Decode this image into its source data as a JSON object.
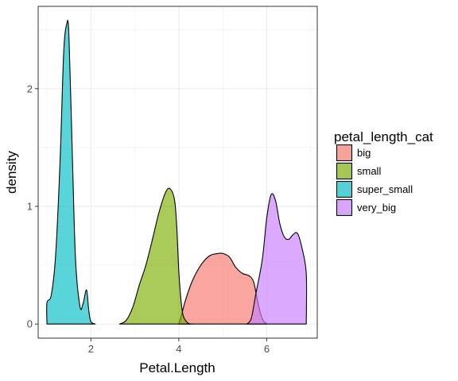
{
  "chart_data": {
    "type": "area",
    "xlabel": "Petal.Length",
    "ylabel": "density",
    "xlim": [
      0.8,
      7.15
    ],
    "ylim": [
      -0.12,
      2.7
    ],
    "x_ticks": [
      2,
      4,
      6
    ],
    "x_tick_labels": [
      "2",
      "4",
      "6"
    ],
    "y_ticks": [
      0,
      1,
      2
    ],
    "y_tick_labels": [
      "0",
      "1",
      "2"
    ],
    "grid": true,
    "legend": {
      "title": "petal_length_cat",
      "placement": "right"
    },
    "series": [
      {
        "name": "big",
        "color": "#F8766D",
        "points": [
          [
            4.0,
            0.0
          ],
          [
            4.05,
            0.06
          ],
          [
            4.15,
            0.2
          ],
          [
            4.3,
            0.36
          ],
          [
            4.5,
            0.5
          ],
          [
            4.7,
            0.58
          ],
          [
            4.9,
            0.6
          ],
          [
            5.0,
            0.6
          ],
          [
            5.15,
            0.57
          ],
          [
            5.3,
            0.48
          ],
          [
            5.45,
            0.43
          ],
          [
            5.6,
            0.41
          ],
          [
            5.7,
            0.36
          ],
          [
            5.78,
            0.22
          ],
          [
            5.85,
            0.1
          ],
          [
            5.92,
            0.03
          ],
          [
            6.0,
            0.0
          ]
        ]
      },
      {
        "name": "small",
        "color": "#7CAE00",
        "points": [
          [
            2.65,
            0.0
          ],
          [
            2.8,
            0.03
          ],
          [
            2.95,
            0.14
          ],
          [
            3.1,
            0.33
          ],
          [
            3.25,
            0.5
          ],
          [
            3.4,
            0.72
          ],
          [
            3.55,
            0.95
          ],
          [
            3.7,
            1.12
          ],
          [
            3.8,
            1.15
          ],
          [
            3.9,
            1.06
          ],
          [
            3.95,
            0.85
          ],
          [
            4.0,
            0.45
          ],
          [
            4.05,
            0.2
          ],
          [
            4.1,
            0.07
          ],
          [
            4.2,
            0.01
          ],
          [
            4.3,
            0.0
          ]
        ]
      },
      {
        "name": "super_small",
        "color": "#00BFC4",
        "points": [
          [
            1.0,
            0.0
          ],
          [
            1.0,
            0.18
          ],
          [
            1.1,
            0.25
          ],
          [
            1.2,
            0.6
          ],
          [
            1.3,
            1.4
          ],
          [
            1.38,
            2.3
          ],
          [
            1.45,
            2.55
          ],
          [
            1.5,
            2.45
          ],
          [
            1.58,
            1.4
          ],
          [
            1.65,
            0.55
          ],
          [
            1.75,
            0.15
          ],
          [
            1.82,
            0.17
          ],
          [
            1.9,
            0.29
          ],
          [
            1.95,
            0.12
          ],
          [
            2.0,
            0.02
          ],
          [
            2.1,
            0.0
          ]
        ]
      },
      {
        "name": "very_big",
        "color": "#C77CFF",
        "points": [
          [
            5.55,
            0.0
          ],
          [
            5.65,
            0.05
          ],
          [
            5.75,
            0.25
          ],
          [
            5.9,
            0.55
          ],
          [
            6.0,
            0.9
          ],
          [
            6.1,
            1.1
          ],
          [
            6.2,
            1.05
          ],
          [
            6.3,
            0.85
          ],
          [
            6.4,
            0.74
          ],
          [
            6.5,
            0.72
          ],
          [
            6.6,
            0.76
          ],
          [
            6.7,
            0.77
          ],
          [
            6.8,
            0.65
          ],
          [
            6.9,
            0.43
          ],
          [
            6.9,
            0.0
          ]
        ]
      }
    ]
  }
}
